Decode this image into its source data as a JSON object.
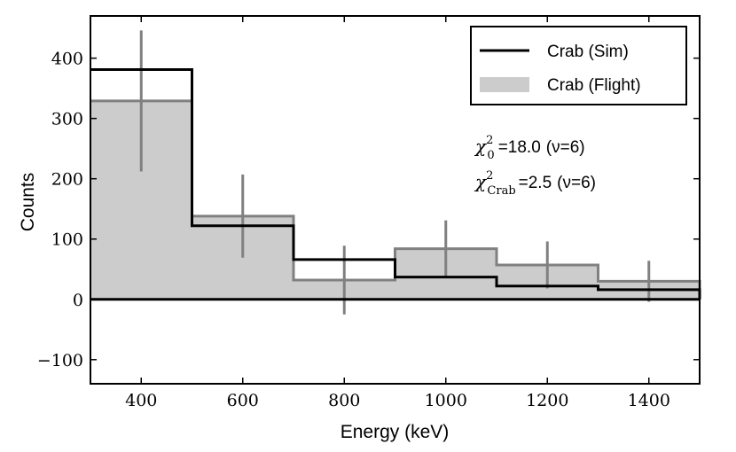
{
  "chart_data": {
    "type": "histogram",
    "xlabel": "Energy (keV)",
    "ylabel": "Counts",
    "xlim": [
      300,
      1500
    ],
    "ylim": [
      -140,
      470
    ],
    "x_ticks": [
      400,
      600,
      800,
      1000,
      1200,
      1400
    ],
    "y_ticks": [
      -100,
      0,
      100,
      200,
      300,
      400
    ],
    "x_tick_labels": [
      "400",
      "600",
      "800",
      "1000",
      "1200",
      "1400"
    ],
    "y_tick_labels": [
      "−100",
      "0",
      "100",
      "200",
      "300",
      "400"
    ],
    "bin_edges": [
      300,
      500,
      700,
      900,
      1100,
      1300,
      1500
    ],
    "bin_centers": [
      400,
      600,
      800,
      1000,
      1200,
      1400
    ],
    "series": [
      {
        "name": "Crab (Sim)",
        "style": "step",
        "color": "#000000",
        "values": [
          381,
          122,
          66,
          37,
          22,
          16
        ]
      },
      {
        "name": "Crab (Flight)",
        "style": "filled-step",
        "fill": "#cccccc",
        "edge": "#808080",
        "values": [
          329,
          138,
          32,
          84,
          57,
          30
        ],
        "errors": [
          117,
          69,
          57,
          47,
          39,
          34
        ]
      }
    ],
    "legend": {
      "position": "top-right",
      "entries": [
        "Crab (Sim)",
        "Crab (Flight)"
      ]
    },
    "annotations": [
      {
        "symbol": "χ",
        "superscript": "2",
        "subscript": "0",
        "value": "=18.0",
        "dof": "(ν=6)"
      },
      {
        "symbol": "χ",
        "superscript": "2",
        "subscript": "Crab",
        "value": "=2.5",
        "dof": "(ν=6)"
      }
    ],
    "grid": false
  }
}
